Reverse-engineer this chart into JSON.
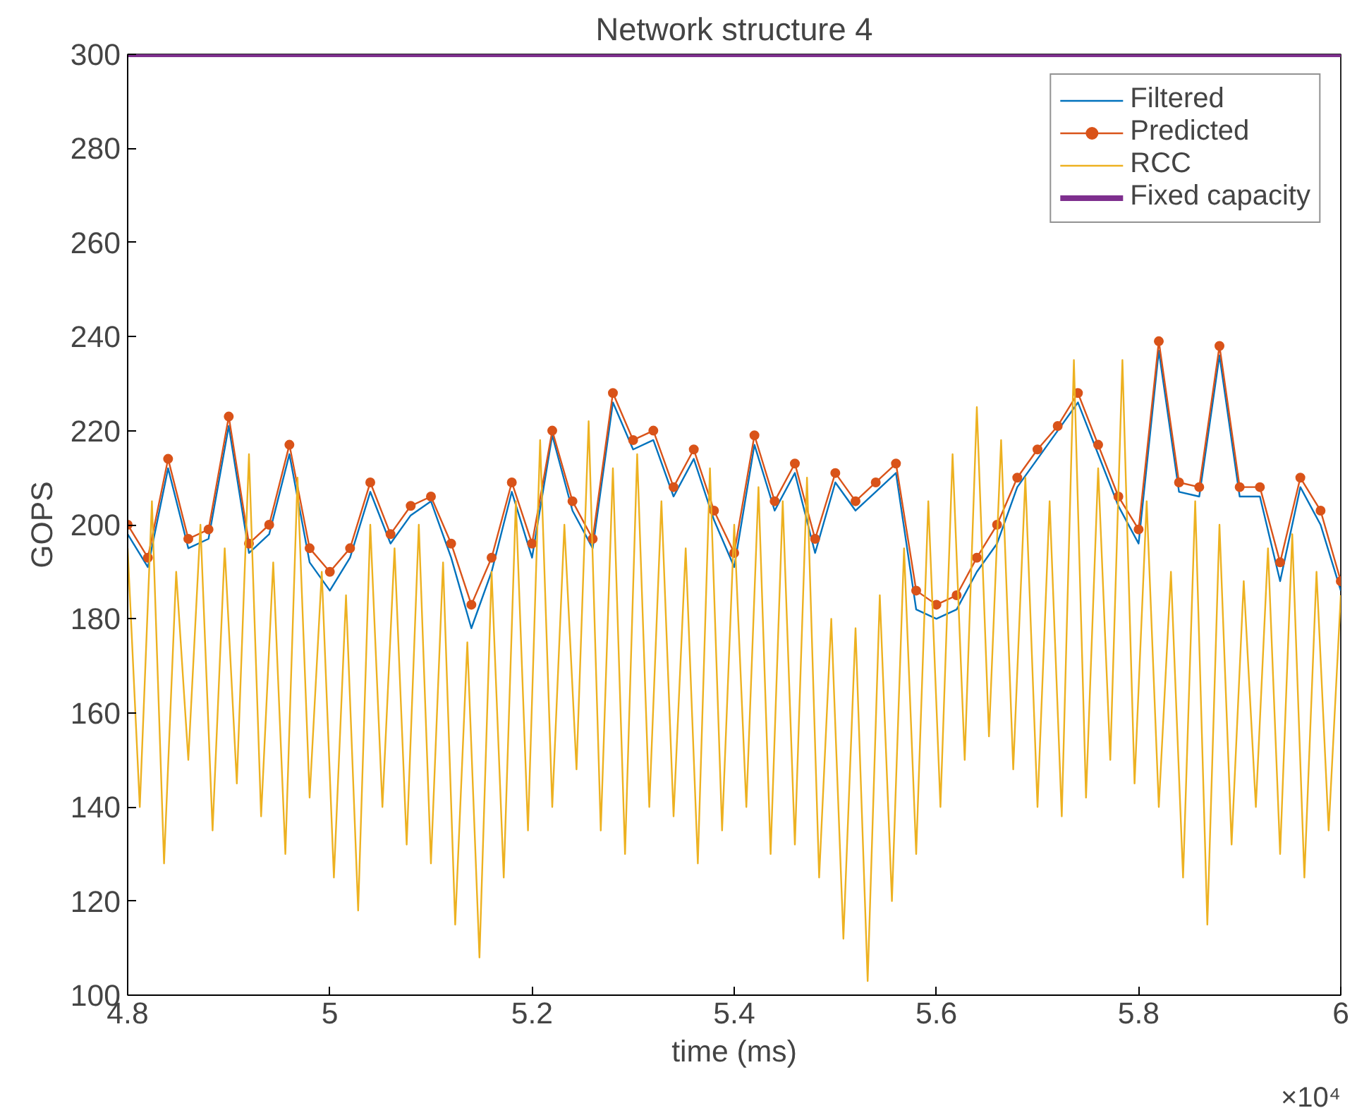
{
  "chart_data": {
    "type": "line",
    "title": "Network structure 4",
    "xlabel": "time (ms)",
    "ylabel": "GOPS",
    "xlim": [
      4.8,
      6.0
    ],
    "ylim": [
      100,
      300
    ],
    "xticks": [
      4.8,
      5,
      5.2,
      5.4,
      5.6,
      5.8,
      6
    ],
    "yticks": [
      100,
      120,
      140,
      160,
      180,
      200,
      220,
      240,
      260,
      280,
      300
    ],
    "grid": false,
    "legend": "top right",
    "annotations": [
      "×10⁴"
    ],
    "ref_lines": [
      {
        "axis": "y",
        "value": 300,
        "label": "Fixed capacity",
        "color": "#7e2f8e"
      }
    ],
    "series": [
      {
        "name": "Filtered",
        "color": "#0072bd",
        "x": [
          4.8,
          4.82,
          4.84,
          4.86,
          4.88,
          4.9,
          4.92,
          4.94,
          4.96,
          4.98,
          5.0,
          5.02,
          5.04,
          5.06,
          5.08,
          5.1,
          5.12,
          5.14,
          5.16,
          5.18,
          5.2,
          5.22,
          5.24,
          5.26,
          5.28,
          5.3,
          5.32,
          5.34,
          5.36,
          5.38,
          5.4,
          5.42,
          5.44,
          5.46,
          5.48,
          5.5,
          5.52,
          5.54,
          5.56,
          5.58,
          5.6,
          5.62,
          5.64,
          5.66,
          5.68,
          5.7,
          5.72,
          5.74,
          5.76,
          5.78,
          5.8,
          5.82,
          5.84,
          5.86,
          5.88,
          5.9,
          5.92,
          5.94,
          5.96,
          5.98,
          6.0
        ],
        "values": [
          198,
          191,
          212,
          195,
          197,
          221,
          194,
          198,
          215,
          192,
          186,
          193,
          207,
          196,
          202,
          205,
          193,
          178,
          190,
          207,
          193,
          219,
          203,
          195,
          226,
          216,
          218,
          206,
          214,
          201,
          191,
          217,
          203,
          211,
          194,
          209,
          203,
          207,
          211,
          182,
          180,
          182,
          190,
          196,
          208,
          214,
          220,
          226,
          215,
          204,
          196,
          237,
          207,
          206,
          236,
          206,
          206,
          188,
          208,
          200,
          186
        ]
      },
      {
        "name": "Predicted",
        "color": "#d95319",
        "marker": "circle",
        "x": [
          4.8,
          4.82,
          4.84,
          4.86,
          4.88,
          4.9,
          4.92,
          4.94,
          4.96,
          4.98,
          5.0,
          5.02,
          5.04,
          5.06,
          5.08,
          5.1,
          5.12,
          5.14,
          5.16,
          5.18,
          5.2,
          5.22,
          5.24,
          5.26,
          5.28,
          5.3,
          5.32,
          5.34,
          5.36,
          5.38,
          5.4,
          5.42,
          5.44,
          5.46,
          5.48,
          5.5,
          5.52,
          5.54,
          5.56,
          5.58,
          5.6,
          5.62,
          5.64,
          5.66,
          5.68,
          5.7,
          5.72,
          5.74,
          5.76,
          5.78,
          5.8,
          5.82,
          5.84,
          5.86,
          5.88,
          5.9,
          5.92,
          5.94,
          5.96,
          5.98,
          6.0
        ],
        "values": [
          200,
          193,
          214,
          197,
          199,
          223,
          196,
          200,
          217,
          195,
          190,
          195,
          209,
          198,
          204,
          206,
          196,
          183,
          193,
          209,
          196,
          220,
          205,
          197,
          228,
          218,
          220,
          208,
          216,
          203,
          194,
          219,
          205,
          213,
          197,
          211,
          205,
          209,
          213,
          186,
          183,
          185,
          193,
          200,
          210,
          216,
          221,
          228,
          217,
          206,
          199,
          239,
          209,
          208,
          238,
          208,
          208,
          192,
          210,
          203,
          188
        ]
      },
      {
        "name": "RCC",
        "color": "#edb120",
        "x": [
          4.8,
          4.812,
          4.824,
          4.836,
          4.848,
          4.86,
          4.872,
          4.884,
          4.896,
          4.908,
          4.92,
          4.932,
          4.944,
          4.956,
          4.968,
          4.98,
          4.992,
          5.004,
          5.016,
          5.028,
          5.04,
          5.052,
          5.064,
          5.076,
          5.088,
          5.1,
          5.112,
          5.124,
          5.136,
          5.148,
          5.16,
          5.172,
          5.184,
          5.196,
          5.208,
          5.22,
          5.232,
          5.244,
          5.256,
          5.268,
          5.28,
          5.292,
          5.304,
          5.316,
          5.328,
          5.34,
          5.352,
          5.364,
          5.376,
          5.388,
          5.4,
          5.412,
          5.424,
          5.436,
          5.448,
          5.46,
          5.472,
          5.484,
          5.496,
          5.508,
          5.52,
          5.532,
          5.544,
          5.556,
          5.568,
          5.58,
          5.592,
          5.604,
          5.616,
          5.628,
          5.64,
          5.652,
          5.664,
          5.676,
          5.688,
          5.7,
          5.712,
          5.724,
          5.736,
          5.748,
          5.76,
          5.772,
          5.784,
          5.796,
          5.808,
          5.82,
          5.832,
          5.844,
          5.856,
          5.868,
          5.88,
          5.892,
          5.904,
          5.916,
          5.928,
          5.94,
          5.952,
          5.964,
          5.976,
          5.988,
          6.0
        ],
        "values": [
          195,
          140,
          205,
          128,
          190,
          150,
          200,
          135,
          195,
          145,
          215,
          138,
          192,
          130,
          210,
          142,
          190,
          125,
          185,
          118,
          200,
          140,
          195,
          132,
          200,
          128,
          192,
          115,
          175,
          108,
          190,
          125,
          205,
          135,
          218,
          140,
          200,
          148,
          222,
          135,
          212,
          130,
          215,
          140,
          205,
          138,
          195,
          128,
          212,
          135,
          200,
          140,
          208,
          130,
          205,
          132,
          210,
          125,
          180,
          112,
          178,
          103,
          185,
          120,
          195,
          130,
          205,
          140,
          215,
          150,
          225,
          155,
          218,
          148,
          210,
          140,
          205,
          138,
          235,
          142,
          212,
          150,
          235,
          145,
          205,
          140,
          190,
          125,
          205,
          115,
          200,
          132,
          188,
          140,
          195,
          130,
          198,
          125,
          190,
          135,
          185
        ]
      }
    ]
  }
}
